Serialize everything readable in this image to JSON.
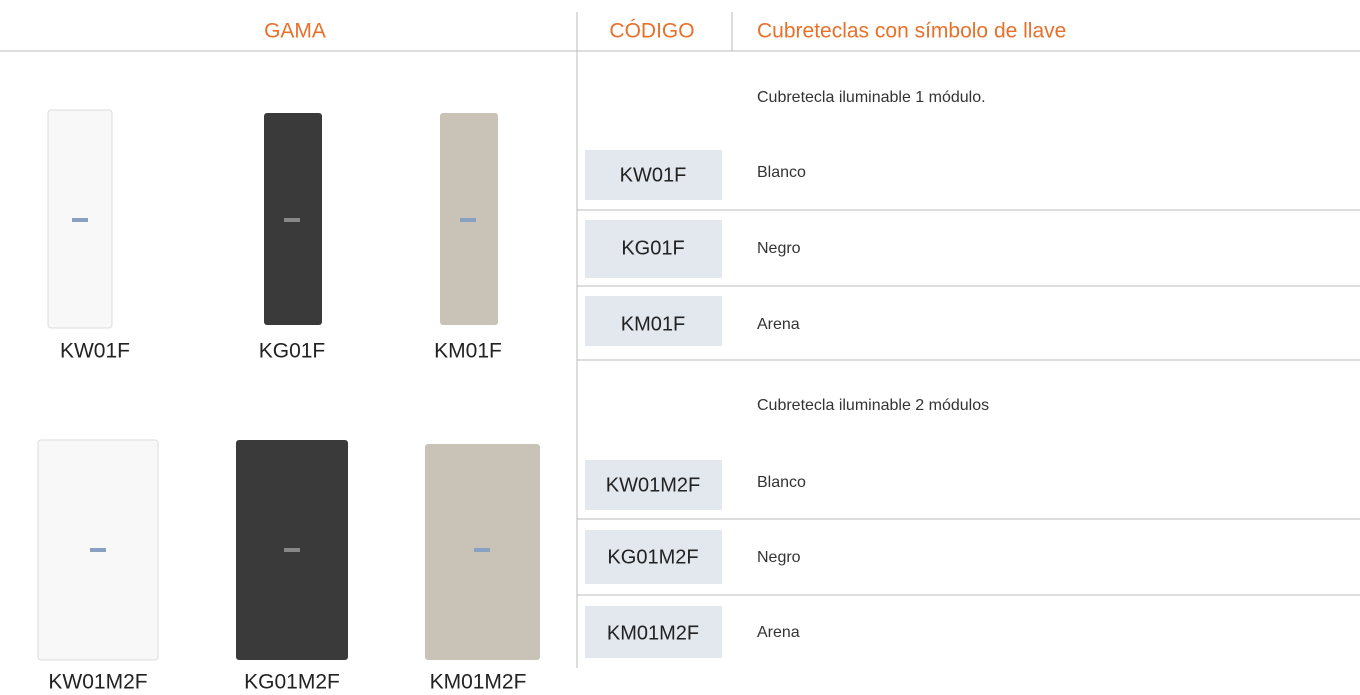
{
  "header": {
    "gama": "GAMA",
    "codigo": "CÓDIGO",
    "title": "Cubreteclas con símbolo de llave"
  },
  "gama": {
    "rows": [
      [
        "KW01F",
        "KG01F",
        "KM01F"
      ],
      [
        "KW01M2F",
        "KG01M2F",
        "KM01M2F"
      ]
    ]
  },
  "groups": [
    {
      "title": "Cubretecla iluminable 1 módulo.",
      "items": [
        {
          "code": "KW01F",
          "color": "Blanco"
        },
        {
          "code": "KG01F",
          "color": "Negro"
        },
        {
          "code": "KM01F",
          "color": "Arena"
        }
      ]
    },
    {
      "title": "Cubretecla iluminable 2 módulos",
      "items": [
        {
          "code": "KW01M2F",
          "color": "Blanco"
        },
        {
          "code": "KG01M2F",
          "color": "Negro"
        },
        {
          "code": "KM01M2F",
          "color": "Arena"
        }
      ]
    }
  ]
}
